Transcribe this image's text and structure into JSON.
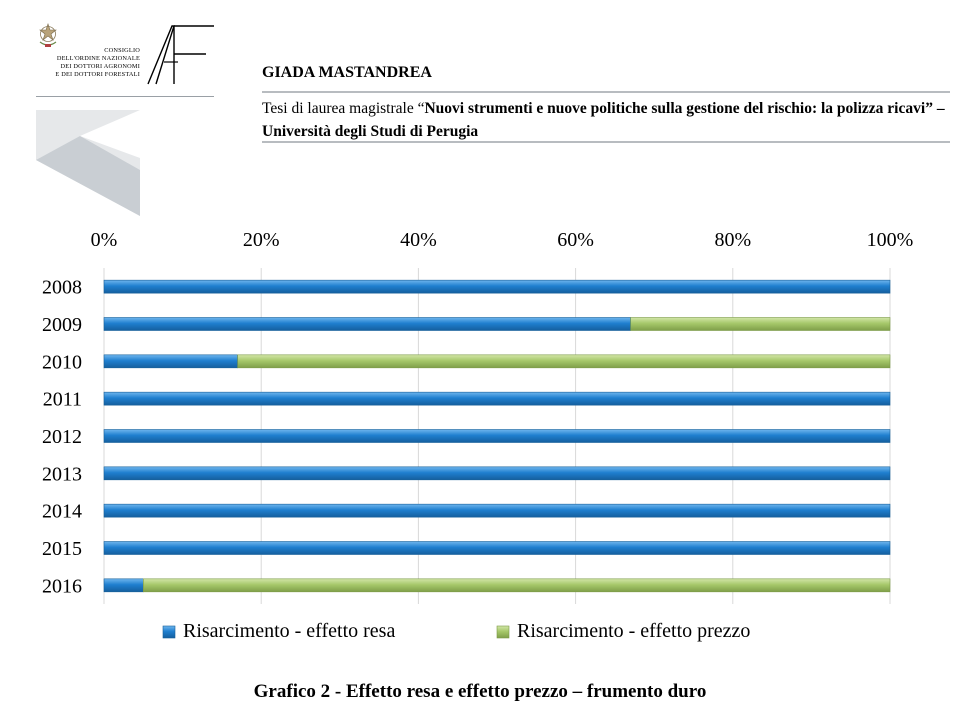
{
  "header": {
    "council_lines": [
      "CONSIGLIO",
      "DELL'ORDINE NAZIONALE",
      "DEI DOTTORI AGRONOMI",
      "E DEI DOTTORI FORESTALI"
    ],
    "logo_letters": "AF",
    "author": "GIADA MASTANDREA",
    "thesis_prefix": "Tesi di laurea magistrale “",
    "thesis_title": "Nuovi strumenti e nuove politiche sulla gestione del rischio: la polizza ricavi",
    "thesis_suffix": "” – Università degli Studi di Perugia"
  },
  "colors": {
    "series_resa": "#1f7fcf",
    "series_prezzo": "#a6c86a",
    "grid": "#d9d9d9",
    "deco_light": "#e6e8ea",
    "deco_dark": "#c9ced3"
  },
  "chart_data": {
    "type": "bar",
    "orientation": "horizontal",
    "stacked": "percent",
    "categories": [
      "2008",
      "2009",
      "2010",
      "2011",
      "2012",
      "2013",
      "2014",
      "2015",
      "2016"
    ],
    "series": [
      {
        "name": "Risarcimento - effetto resa",
        "values": [
          100,
          67,
          17,
          100,
          100,
          100,
          100,
          100,
          5
        ]
      },
      {
        "name": "Risarcimento - effetto prezzo",
        "values": [
          0,
          33,
          83,
          0,
          0,
          0,
          0,
          0,
          95
        ]
      }
    ],
    "xlim": [
      0,
      100
    ],
    "x_ticks": [
      "0%",
      "20%",
      "40%",
      "60%",
      "80%",
      "100%"
    ],
    "x_axis_position": "top",
    "grid": true,
    "legend_position": "bottom",
    "caption": "Grafico 2 - Effetto resa e effetto prezzo – frumento duro"
  }
}
